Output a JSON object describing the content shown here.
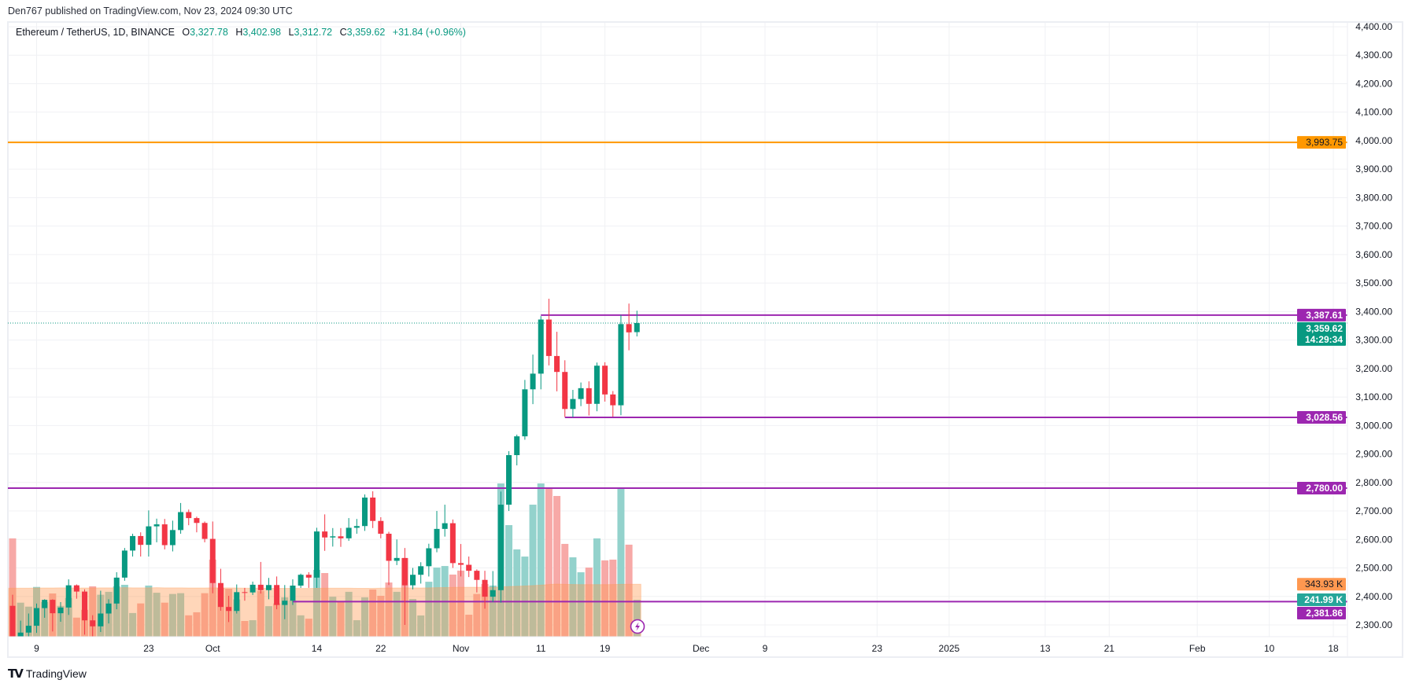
{
  "publisher_line": "Den767 published on TradingView.com, Nov 23, 2024 09:30 UTC",
  "legend": {
    "symbol": "Ethereum / TetherUS, 1D, BINANCE",
    "o_label": "O",
    "o": "3,327.78",
    "h_label": "H",
    "h": "3,402.98",
    "l_label": "L",
    "l": "3,312.72",
    "c_label": "C",
    "c": "3,359.62",
    "change": "+31.84 (+0.96%)"
  },
  "footer": {
    "brand": "TradingView"
  },
  "colors": {
    "up": "#089981",
    "down": "#f23645",
    "vol_up": "#93d2cc",
    "vol_down": "#f7a9a7",
    "vol_ma": "#ff9850",
    "level": "#9c27b0",
    "target": "#ff9800",
    "grid": "#f0f1f4"
  },
  "chart_data": {
    "type": "candlestick",
    "symbol": "ETHUSDT",
    "interval": "1D",
    "ylim": [
      2259,
      4420
    ],
    "y_ticks": [
      "4,400.00",
      "4,300.00",
      "4,200.00",
      "4,100.00",
      "4,000.00",
      "3,900.00",
      "3,800.00",
      "3,700.00",
      "3,600.00",
      "3,500.00",
      "3,400.00",
      "3,300.00",
      "3,200.00",
      "3,100.00",
      "3,000.00",
      "2,900.00",
      "2,800.00",
      "2,700.00",
      "2,600.00",
      "2,500.00",
      "2,400.00",
      "2,300.00"
    ],
    "y_tick_values": [
      4400,
      4300,
      4200,
      4100,
      4000,
      3900,
      3800,
      3700,
      3600,
      3500,
      3400,
      3300,
      3200,
      3100,
      3000,
      2900,
      2800,
      2700,
      2600,
      2500,
      2400,
      2300
    ],
    "x_ticks": [
      {
        "date": "2024-09-09",
        "label": "9"
      },
      {
        "date": "2024-09-23",
        "label": "23"
      },
      {
        "date": "2024-10-01",
        "label": "Oct"
      },
      {
        "date": "2024-10-14",
        "label": "14"
      },
      {
        "date": "2024-10-22",
        "label": "22"
      },
      {
        "date": "2024-11-01",
        "label": "Nov"
      },
      {
        "date": "2024-11-11",
        "label": "11"
      },
      {
        "date": "2024-11-19",
        "label": "19"
      },
      {
        "date": "2024-12-01",
        "label": "Dec"
      },
      {
        "date": "2024-12-09",
        "label": "9"
      },
      {
        "date": "2024-12-23",
        "label": "23"
      },
      {
        "date": "2025-01-01",
        "label": "2025"
      },
      {
        "date": "2025-01-13",
        "label": "13"
      },
      {
        "date": "2025-01-21",
        "label": "21"
      },
      {
        "date": "2025-02-01",
        "label": "Feb"
      },
      {
        "date": "2025-02-10",
        "label": "10"
      },
      {
        "date": "2025-02-18",
        "label": "18"
      }
    ],
    "x_range": [
      "2024-09-06",
      "2025-02-25"
    ],
    "grid": true,
    "candles_start": "2024-09-06",
    "ohlcv": [
      [
        2367,
        2406,
        2150,
        2222,
        644
      ],
      [
        2222,
        2315,
        2215,
        2273,
        223
      ],
      [
        2273,
        2340,
        2235,
        2297,
        197
      ],
      [
        2297,
        2375,
        2272,
        2359,
        326
      ],
      [
        2359,
        2390,
        2325,
        2388,
        227
      ],
      [
        2388,
        2390,
        2277,
        2341,
        283
      ],
      [
        2341,
        2380,
        2311,
        2361,
        202
      ],
      [
        2361,
        2460,
        2335,
        2439,
        254
      ],
      [
        2439,
        2442,
        2392,
        2417,
        125
      ],
      [
        2417,
        2425,
        2266,
        2316,
        176
      ],
      [
        2316,
        2334,
        2260,
        2295,
        330
      ],
      [
        2295,
        2420,
        2275,
        2340,
        275
      ],
      [
        2340,
        2390,
        2305,
        2375,
        294
      ],
      [
        2375,
        2485,
        2355,
        2466,
        330
      ],
      [
        2466,
        2570,
        2455,
        2561,
        340
      ],
      [
        2561,
        2620,
        2540,
        2612,
        155
      ],
      [
        2612,
        2625,
        2540,
        2581,
        218
      ],
      [
        2581,
        2702,
        2540,
        2646,
        335
      ],
      [
        2646,
        2673,
        2590,
        2653,
        288
      ],
      [
        2653,
        2672,
        2565,
        2580,
        223
      ],
      [
        2580,
        2666,
        2558,
        2633,
        280
      ],
      [
        2633,
        2728,
        2620,
        2696,
        285
      ],
      [
        2696,
        2705,
        2650,
        2675,
        140
      ],
      [
        2675,
        2680,
        2625,
        2658,
        160
      ],
      [
        2658,
        2663,
        2590,
        2602,
        285
      ],
      [
        2602,
        2663,
        2411,
        2447,
        505
      ],
      [
        2447,
        2497,
        2350,
        2363,
        320
      ],
      [
        2363,
        2402,
        2310,
        2349,
        314
      ],
      [
        2349,
        2442,
        2340,
        2415,
        244
      ],
      [
        2415,
        2430,
        2385,
        2414,
        103
      ],
      [
        2414,
        2452,
        2405,
        2441,
        108
      ],
      [
        2441,
        2521,
        2410,
        2422,
        300
      ],
      [
        2422,
        2465,
        2390,
        2440,
        200
      ],
      [
        2440,
        2470,
        2355,
        2370,
        218
      ],
      [
        2370,
        2440,
        2320,
        2385,
        258
      ],
      [
        2385,
        2460,
        2370,
        2438,
        237
      ],
      [
        2438,
        2480,
        2430,
        2476,
        140
      ],
      [
        2476,
        2485,
        2430,
        2466,
        118
      ],
      [
        2466,
        2641,
        2430,
        2628,
        438
      ],
      [
        2628,
        2688,
        2560,
        2607,
        417
      ],
      [
        2607,
        2640,
        2575,
        2611,
        262
      ],
      [
        2611,
        2640,
        2574,
        2604,
        229
      ],
      [
        2604,
        2675,
        2595,
        2641,
        294
      ],
      [
        2641,
        2672,
        2620,
        2647,
        108
      ],
      [
        2647,
        2758,
        2630,
        2747,
        258
      ],
      [
        2747,
        2769,
        2640,
        2665,
        309
      ],
      [
        2665,
        2678,
        2604,
        2620,
        268
      ],
      [
        2620,
        2627,
        2440,
        2525,
        355
      ],
      [
        2525,
        2600,
        2510,
        2535,
        294
      ],
      [
        2535,
        2570,
        2300,
        2439,
        515
      ],
      [
        2439,
        2500,
        2425,
        2476,
        247
      ],
      [
        2476,
        2520,
        2445,
        2506,
        139
      ],
      [
        2506,
        2585,
        2470,
        2569,
        360
      ],
      [
        2569,
        2700,
        2555,
        2637,
        453
      ],
      [
        2637,
        2722,
        2610,
        2657,
        463
      ],
      [
        2657,
        2670,
        2500,
        2517,
        407
      ],
      [
        2517,
        2584,
        2470,
        2511,
        433
      ],
      [
        2511,
        2540,
        2468,
        2490,
        144
      ],
      [
        2490,
        2495,
        2414,
        2458,
        280
      ],
      [
        2458,
        2490,
        2357,
        2399,
        345
      ],
      [
        2399,
        2489,
        2380,
        2422,
        335
      ],
      [
        2422,
        2768,
        2378,
        2722,
        1004
      ],
      [
        2722,
        2910,
        2700,
        2896,
        731
      ],
      [
        2896,
        2968,
        2860,
        2962,
        572
      ],
      [
        2962,
        3160,
        2950,
        3127,
        525
      ],
      [
        3127,
        3249,
        3075,
        3182,
        865
      ],
      [
        3182,
        3384,
        3127,
        3372,
        1004
      ],
      [
        3372,
        3445,
        3211,
        3244,
        973
      ],
      [
        3244,
        3329,
        3120,
        3188,
        922
      ],
      [
        3188,
        3229,
        3030,
        3058,
        608
      ],
      [
        3058,
        3125,
        3029,
        3093,
        520
      ],
      [
        3093,
        3151,
        3068,
        3131,
        422
      ],
      [
        3131,
        3155,
        3035,
        3076,
        453
      ],
      [
        3076,
        3221,
        3050,
        3210,
        644
      ],
      [
        3210,
        3222,
        3084,
        3109,
        500
      ],
      [
        3109,
        3121,
        3031,
        3071,
        505
      ],
      [
        3071,
        3388,
        3036,
        3356,
        978
      ],
      [
        3356,
        3428,
        3264,
        3327,
        603
      ],
      [
        3327.78,
        3402.98,
        3312.72,
        3359.62,
        241.99
      ]
    ],
    "ohlcv_fields": [
      "open",
      "high",
      "low",
      "close",
      "volume_k"
    ],
    "volume_ma_k": [
      318,
      318,
      318,
      319,
      319,
      319,
      320,
      320,
      319,
      319,
      319,
      320,
      320,
      320,
      321,
      320,
      320,
      320,
      321,
      320,
      320,
      320,
      319,
      319,
      319,
      320,
      320,
      320,
      319,
      318,
      318,
      318,
      317,
      317,
      317,
      317,
      316,
      316,
      317,
      318,
      318,
      318,
      318,
      317,
      317,
      317,
      318,
      319,
      319,
      320,
      320,
      319,
      320,
      321,
      322,
      323,
      324,
      324,
      324,
      324,
      324,
      326,
      328,
      330,
      332,
      335,
      338,
      342,
      345,
      343,
      342,
      341,
      341,
      341,
      341,
      342,
      343,
      344,
      343.93
    ],
    "levels": [
      {
        "price": 3993.75,
        "label": "3,993.75",
        "color": "#ff9800",
        "from": null
      },
      {
        "price": 3387.61,
        "label": "3,387.61",
        "color": "#9c27b0",
        "from": "2024-11-11"
      },
      {
        "price": 3028.56,
        "label": "3,028.56",
        "color": "#9c27b0",
        "from": "2024-11-14"
      },
      {
        "price": 2780.0,
        "label": "2,780.00",
        "color": "#9c27b0",
        "from": null
      },
      {
        "price": 2381.86,
        "label": "2,381.86",
        "color": "#9c27b0",
        "from": "2024-10-11"
      }
    ],
    "last_price": {
      "price": 3359.62,
      "label": "3,359.62",
      "countdown": "14:29:34",
      "color": "#089981"
    },
    "volume_tags": [
      {
        "value_k": 343.93,
        "label": "343.93 K",
        "color": "#ff9850",
        "text": "#131722"
      },
      {
        "value_k": 241.99,
        "label": "241.99 K",
        "color": "#26a69a",
        "text": "#ffffff"
      }
    ]
  }
}
